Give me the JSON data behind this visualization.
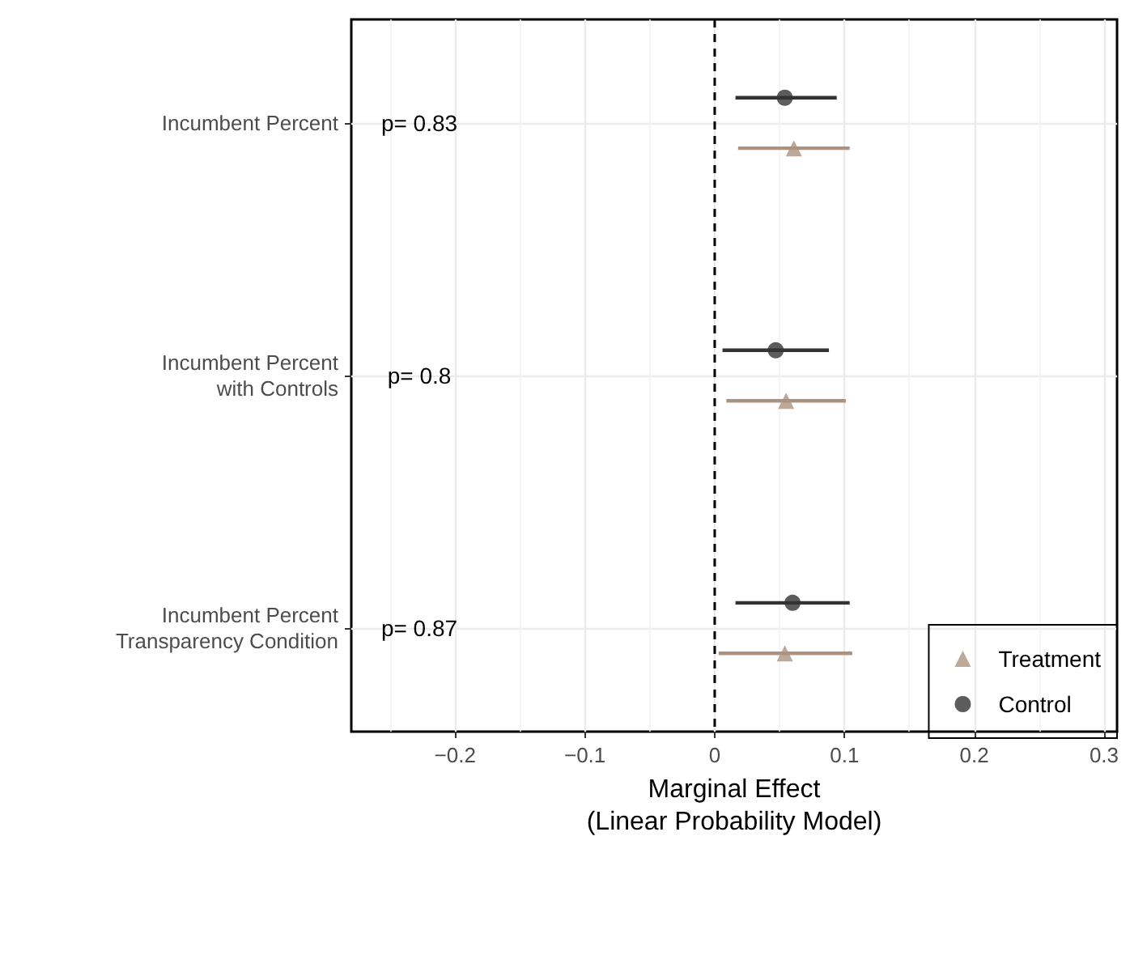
{
  "chart_data": {
    "type": "scatter",
    "orientation": "horizontal",
    "xlabel": "Marginal Effect\n(Linear Probability Model)",
    "categories": [
      "Incumbent Percent",
      "Incumbent Percent\nwith Controls",
      "Incumbent Percent\nTransparency Condition"
    ],
    "series": [
      {
        "name": "Treatment",
        "color": "#ab9381",
        "marker": "triangle",
        "values": [
          0.061,
          0.055,
          0.054
        ],
        "errors": [
          [
            0.018,
            0.104
          ],
          [
            0.009,
            0.101
          ],
          [
            0.003,
            0.106
          ]
        ]
      },
      {
        "name": "Control",
        "color": "#333333",
        "marker": "circle",
        "values": [
          0.054,
          0.047,
          0.06
        ],
        "errors": [
          [
            0.016,
            0.094
          ],
          [
            0.006,
            0.088
          ],
          [
            0.016,
            0.104
          ]
        ]
      }
    ],
    "xlim": [
      -0.28,
      0.31
    ],
    "xticks": [
      {
        "value": -0.2,
        "label": "−0.2"
      },
      {
        "value": -0.1,
        "label": "−0.1"
      },
      0,
      0.1,
      0.2,
      0.3
    ],
    "grid": true,
    "legend": "bottom right",
    "ref_lines": [
      {
        "axis": "x",
        "value": 0,
        "color": "#000000",
        "line_style": "dashed"
      }
    ],
    "annotations": [
      "p= 0.83",
      "p= 0.8",
      "p= 0.87"
    ]
  }
}
